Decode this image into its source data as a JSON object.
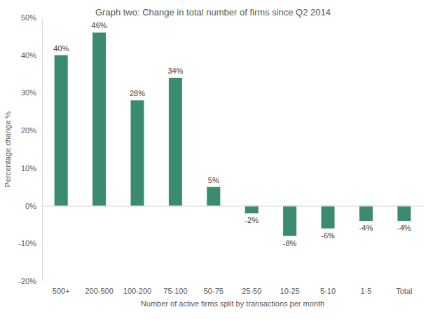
{
  "chart_data": {
    "type": "bar",
    "title": "Graph two: Change in total number of firms since Q2 2014",
    "x_label": "Number  of active firms split by transactions per month",
    "y_label": "Percentage change %",
    "categories": [
      "500+",
      "200-500",
      "100-200",
      "75-100",
      "50-75",
      "25-50",
      "10-25",
      "5-10",
      "1-5",
      "Total"
    ],
    "values": [
      40,
      46,
      28,
      34,
      5,
      -2,
      -8,
      -6,
      -4,
      -4
    ],
    "value_labels": [
      "40%",
      "46%",
      "28%",
      "34%",
      "5%",
      "-2%",
      "-8%",
      "-6%",
      "-4%",
      "-4%"
    ],
    "color": "#3b8c6e",
    "ylim": [
      -20,
      50
    ],
    "yticks": [
      {
        "value": -20,
        "label": "-20%"
      },
      {
        "value": -10,
        "label": "-10%"
      },
      {
        "value": 0,
        "label": "0%"
      },
      {
        "value": 10,
        "label": "10%"
      },
      {
        "value": 20,
        "label": "20%"
      },
      {
        "value": 30,
        "label": "30%"
      },
      {
        "value": 40,
        "label": "40%"
      },
      {
        "value": 50,
        "label": "50%"
      }
    ],
    "grid": false,
    "data_labels": true
  }
}
